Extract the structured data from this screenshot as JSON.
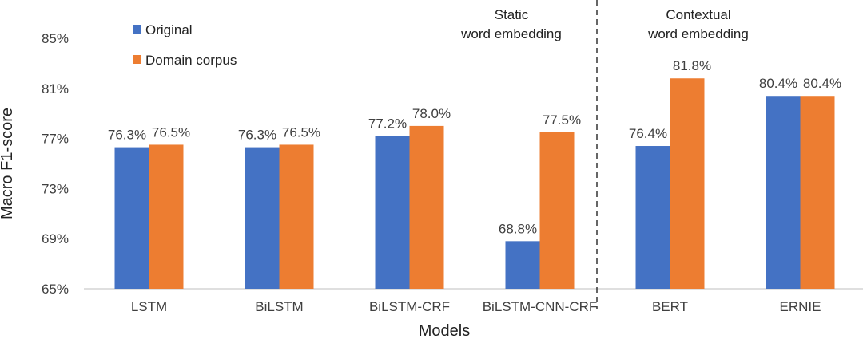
{
  "chart_data": {
    "type": "bar",
    "title": "",
    "xlabel": "Models",
    "ylabel": "Macro F1-score",
    "ylim": [
      65,
      85
    ],
    "yticks": [
      65,
      69,
      73,
      77,
      81,
      85
    ],
    "ytick_suffix": "%",
    "grid": false,
    "legend_position": "top-left",
    "categories": [
      "LSTM",
      "BiLSTM",
      "BiLSTM-CRF",
      "BiLSTM-CNN-CRF",
      "BERT",
      "ERNIE"
    ],
    "series": [
      {
        "name": "Original",
        "color": "#4472C4",
        "values": [
          76.3,
          76.3,
          77.2,
          68.8,
          76.4,
          80.4
        ],
        "labels": [
          "76.3%",
          "76.3%",
          "77.2%",
          "68.8%",
          "76.4%",
          "80.4%"
        ]
      },
      {
        "name": "Domain corpus",
        "color": "#ED7D31",
        "values": [
          76.5,
          76.5,
          78.0,
          77.5,
          81.8,
          80.4
        ],
        "labels": [
          "76.5%",
          "76.5%",
          "78.0%",
          "77.5%",
          "81.8%",
          "80.4%"
        ]
      }
    ],
    "annotations": [
      {
        "lines": [
          "Static",
          "word embedding"
        ]
      },
      {
        "lines": [
          "Contextual",
          "word embedding"
        ]
      }
    ]
  }
}
